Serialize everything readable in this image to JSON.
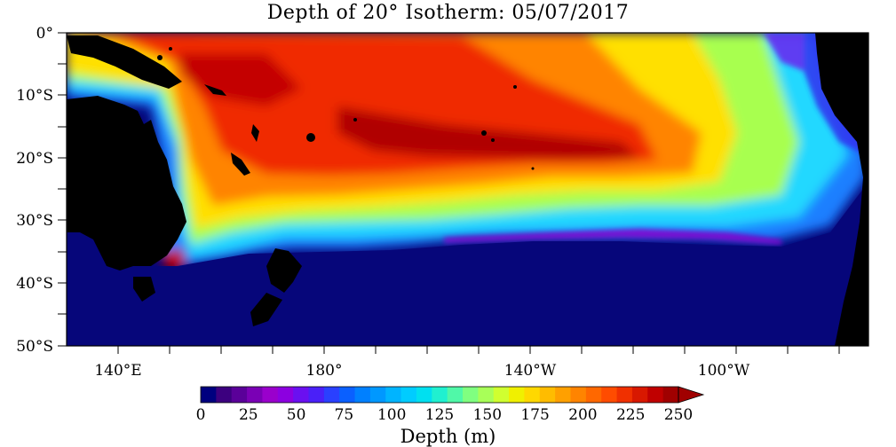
{
  "map": {
    "title": "Depth of 20° Isotherm: 05/07/2017",
    "lat_labels": [
      "0°",
      "10°S",
      "20°S",
      "30°S",
      "40°S",
      "50°S"
    ],
    "lon_labels": [
      "140°E",
      "180°",
      "140°W",
      "100°W"
    ],
    "colorbar": {
      "title": "Depth (m)",
      "tick_labels": [
        "0",
        "25",
        "50",
        "75",
        "100",
        "125",
        "150",
        "175",
        "200",
        "225",
        "250"
      ],
      "min": 0,
      "max": 250,
      "extend": "max",
      "colors": [
        "#00007f",
        "#3c007f",
        "#5a0099",
        "#7a00b5",
        "#9a00cc",
        "#8c00e0",
        "#6a10f0",
        "#4a20f8",
        "#2a40ff",
        "#0a60ff",
        "#0080ff",
        "#0098ff",
        "#00b4ff",
        "#00ccff",
        "#00e0f0",
        "#20f0d0",
        "#50f8a8",
        "#80ff80",
        "#a8ff58",
        "#d0ff30",
        "#f0f000",
        "#ffd800",
        "#ffbc00",
        "#ffa000",
        "#ff8400",
        "#ff6800",
        "#ff4c00",
        "#f03000",
        "#d81800",
        "#c00000",
        "#a00000"
      ]
    },
    "land_color": "#000000",
    "ocean_deep_color": "#06067a"
  }
}
